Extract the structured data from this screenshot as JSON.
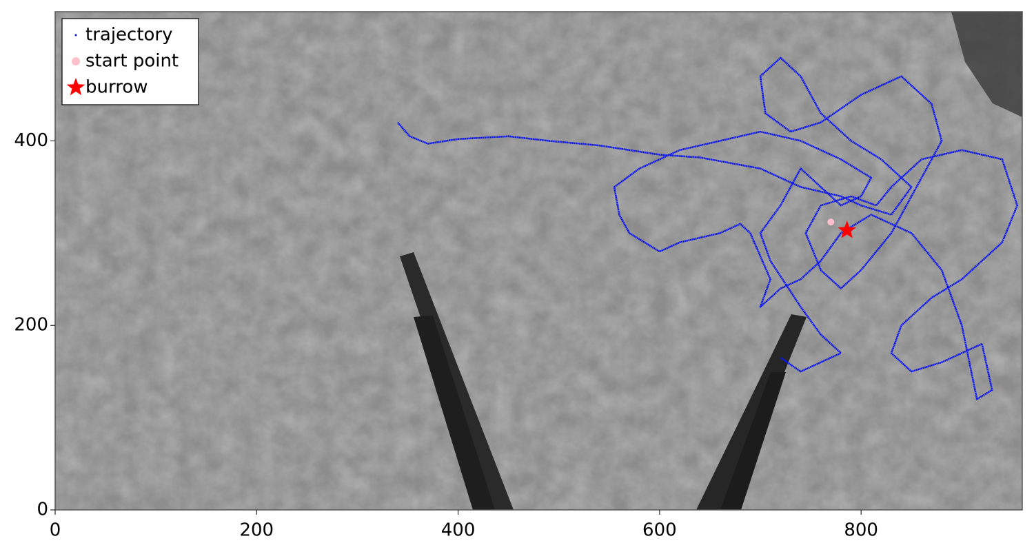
{
  "chart_data": {
    "type": "line",
    "xlim": [
      0,
      960
    ],
    "ylim": [
      0,
      540
    ],
    "xticks": [
      0,
      200,
      400,
      600,
      800
    ],
    "yticks": [
      0,
      200,
      400
    ],
    "legend": "upper left",
    "series": [
      {
        "name": "trajectory",
        "color": "#0a14f0",
        "marker": "line",
        "x": [
          340,
          352,
          370,
          400,
          450,
          490,
          540,
          600,
          640,
          650,
          700,
          740,
          780,
          800,
          830,
          850,
          820,
          790,
          760,
          740,
          720,
          700,
          705,
          730,
          760,
          800,
          840,
          870,
          880,
          860,
          830,
          800,
          780,
          760,
          745,
          760,
          790,
          815,
          830,
          860,
          900,
          940,
          955,
          940,
          900,
          870,
          840,
          830,
          850,
          880,
          920,
          930,
          915,
          900,
          880,
          850,
          810,
          780,
          760,
          740,
          720,
          700,
          710,
          690,
          680,
          660,
          620,
          600,
          570,
          560,
          555,
          580,
          620,
          660,
          700,
          740,
          780,
          810,
          800,
          780,
          760,
          740,
          720,
          700,
          710,
          740,
          760,
          780,
          740,
          720
        ],
        "y": [
          420,
          405,
          397,
          402,
          405,
          400,
          395,
          385,
          382,
          380,
          370,
          350,
          340,
          330,
          320,
          350,
          380,
          400,
          430,
          470,
          490,
          470,
          430,
          410,
          420,
          450,
          470,
          440,
          400,
          360,
          300,
          260,
          240,
          260,
          300,
          330,
          340,
          330,
          350,
          380,
          390,
          380,
          330,
          290,
          250,
          230,
          200,
          170,
          150,
          160,
          180,
          130,
          120,
          200,
          260,
          300,
          320,
          300,
          270,
          250,
          240,
          220,
          250,
          300,
          310,
          300,
          290,
          280,
          300,
          320,
          350,
          370,
          390,
          400,
          410,
          400,
          380,
          360,
          340,
          330,
          350,
          370,
          330,
          300,
          270,
          220,
          190,
          170,
          150,
          165
        ]
      },
      {
        "name": "start point",
        "color": "#ffc0cb",
        "marker": "circle",
        "x": [
          770
        ],
        "y": [
          312
        ]
      },
      {
        "name": "burrow",
        "color": "#ff0000",
        "marker": "star",
        "x": [
          786
        ],
        "y": [
          303
        ]
      }
    ]
  }
}
